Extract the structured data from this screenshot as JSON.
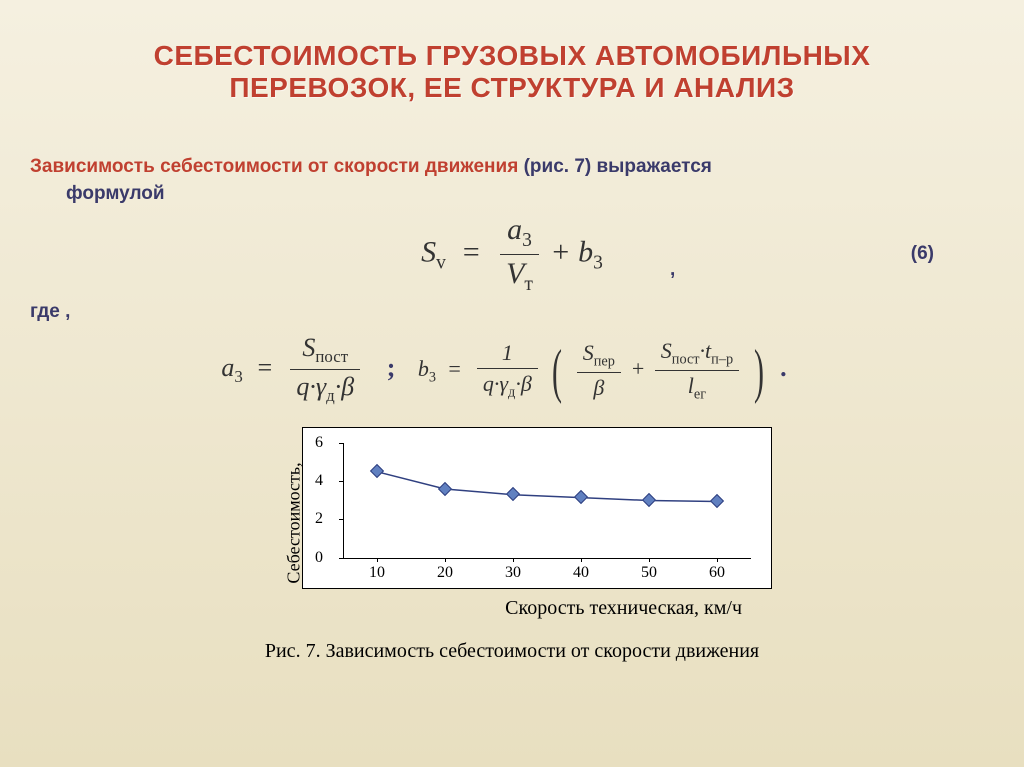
{
  "title": {
    "line1": "СЕБЕСТОИМОСТЬ ГРУЗОВЫХ АВТОМОБИЛЬНЫХ",
    "line2": "ПЕРЕВОЗОК, ЕЕ СТРУКТУРА И АНАЛИЗ",
    "color": "#c04030",
    "fontsize": 28
  },
  "intro": {
    "highlight": "Зависимость себестоимости от скорости движения",
    "rest_before_break": " (рис. 7) выражается",
    "rest_after_break": "формулой"
  },
  "formula_main": {
    "lhs": "S",
    "lhs_sub": "v",
    "num": "a",
    "num_sub": "3",
    "den": "V",
    "den_sub": "т",
    "plus": " + b",
    "plus_sub": "3",
    "eq_number": "(6)",
    "trailing_punct": ","
  },
  "where_label": "где ,",
  "formula_a3": {
    "lhs": "a",
    "lhs_sub": "3",
    "num": "S",
    "num_sub": "пост",
    "den": "q·γ_д·β"
  },
  "formula_b3": {
    "lhs": "b",
    "lhs_sub": "3",
    "frac1_num": "1",
    "frac1_den": "q·γ_д·β",
    "term1_num": "S_пер",
    "term1_den": "β",
    "term2_num": "S_пост·t_п–р",
    "term2_den": "l_ег"
  },
  "separator": ";",
  "final_punct": ".",
  "chart": {
    "type": "line",
    "y_label": "Себестоимость,\nр./ткм",
    "x_label": "Скорость техническая, км/ч",
    "ylim": [
      0,
      6
    ],
    "yticks": [
      0,
      2,
      4,
      6
    ],
    "xticks": [
      10,
      20,
      30,
      40,
      50,
      60
    ],
    "x_values": [
      10,
      20,
      30,
      40,
      50,
      60
    ],
    "y_values": [
      4.5,
      3.6,
      3.3,
      3.15,
      3.0,
      2.95
    ],
    "background_color": "#ffffff",
    "border_color": "#000000",
    "line_color": "#304080",
    "marker_fill": "#6080c0",
    "marker_border": "#304080",
    "line_width": 1.5,
    "marker_size": 8,
    "fontsize_ticks": 16,
    "fontsize_labels": 18
  },
  "caption": "Рис. 7. Зависимость себестоимости от скорости движения"
}
